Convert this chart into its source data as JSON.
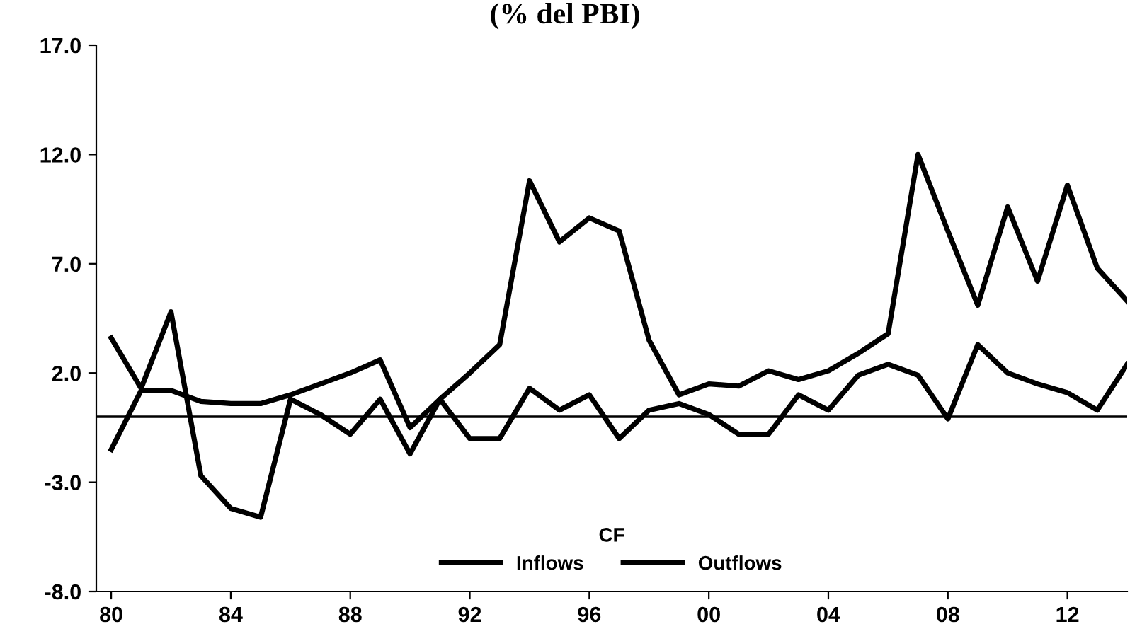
{
  "chart_data": {
    "type": "line",
    "title": "(% del PBI)",
    "legend_title": "CF",
    "x": [
      1980,
      1981,
      1982,
      1983,
      1984,
      1985,
      1986,
      1987,
      1988,
      1989,
      1990,
      1991,
      1992,
      1993,
      1994,
      1995,
      1996,
      1997,
      1998,
      1999,
      2000,
      2001,
      2002,
      2003,
      2004,
      2005,
      2006,
      2007,
      2008,
      2009,
      2010,
      2011,
      2012,
      2013,
      2014
    ],
    "series": [
      {
        "name": "Inflows",
        "color": "#000000",
        "values": [
          3.6,
          1.3,
          4.8,
          -2.7,
          -4.2,
          -4.6,
          0.8,
          0.1,
          -0.8,
          0.8,
          -1.7,
          0.8,
          2.0,
          3.3,
          10.8,
          8.0,
          9.1,
          8.5,
          3.5,
          1.0,
          1.5,
          1.4,
          2.1,
          1.7,
          2.1,
          2.9,
          3.8,
          12.0,
          8.5,
          5.1,
          9.6,
          6.2,
          10.6,
          6.8,
          5.3
        ]
      },
      {
        "name": "Outflows",
        "color": "#000000",
        "values": [
          -1.5,
          1.2,
          1.2,
          0.7,
          0.6,
          0.6,
          1.0,
          1.5,
          2.0,
          2.6,
          -0.5,
          0.8,
          -1.0,
          -1.0,
          1.3,
          0.3,
          1.0,
          -1.0,
          0.3,
          0.6,
          0.1,
          -0.8,
          -0.8,
          1.0,
          0.3,
          1.9,
          2.4,
          1.9,
          -0.1,
          3.3,
          2.0,
          1.5,
          1.1,
          0.3,
          2.4
        ]
      }
    ],
    "xlim": [
      1979.5,
      2014
    ],
    "xticks": [
      {
        "value": 1980,
        "label": "80"
      },
      {
        "value": 1984,
        "label": "84"
      },
      {
        "value": 1988,
        "label": "88"
      },
      {
        "value": 1992,
        "label": "92"
      },
      {
        "value": 1996,
        "label": "96"
      },
      {
        "value": 2000,
        "label": "00"
      },
      {
        "value": 2004,
        "label": "04"
      },
      {
        "value": 2008,
        "label": "08"
      },
      {
        "value": 2012,
        "label": "12"
      }
    ],
    "ylim": [
      -8,
      17
    ],
    "yticks": [
      {
        "value": -8,
        "label": "-8.0"
      },
      {
        "value": -3,
        "label": "-3.0"
      },
      {
        "value": 2,
        "label": "2.0"
      },
      {
        "value": 7,
        "label": "7.0"
      },
      {
        "value": 12,
        "label": "12.0"
      },
      {
        "value": 17,
        "label": "17.0"
      }
    ],
    "ref_lines": [
      {
        "axis": "y",
        "value": 0,
        "color": "#000000"
      }
    ],
    "grid": false,
    "legend": "bottom",
    "line_style": "solid",
    "marker": "none"
  }
}
